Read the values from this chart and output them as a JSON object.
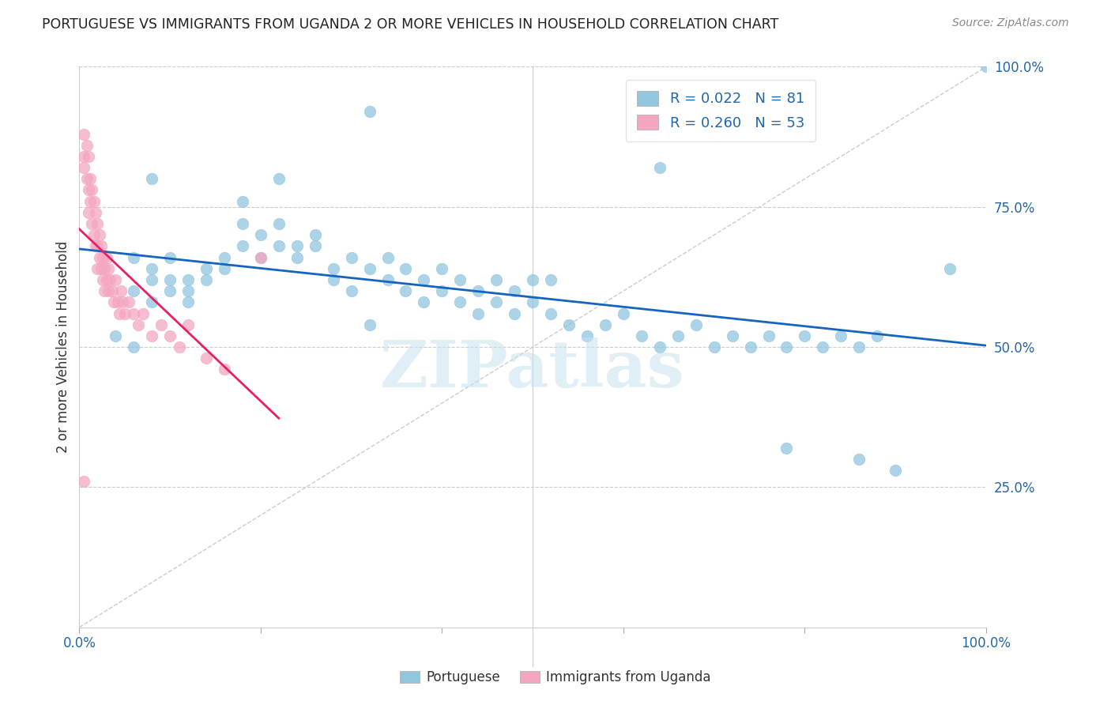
{
  "title": "PORTUGUESE VS IMMIGRANTS FROM UGANDA 2 OR MORE VEHICLES IN HOUSEHOLD CORRELATION CHART",
  "source": "Source: ZipAtlas.com",
  "ylabel": "2 or more Vehicles in Household",
  "xlim": [
    0,
    1.0
  ],
  "ylim": [
    0,
    1.0
  ],
  "blue_color": "#92c5de",
  "pink_color": "#f4a6c0",
  "regression_blue": "#1565c0",
  "regression_pink": "#e91e63",
  "R_blue": 0.022,
  "N_blue": 81,
  "R_pink": 0.26,
  "N_pink": 53,
  "legend_label_blue": "Portuguese",
  "legend_label_pink": "Immigrants from Uganda",
  "watermark": "ZIPatlas",
  "blue_scatter_x": [
    0.32,
    0.08,
    0.22,
    0.18,
    0.22,
    0.18,
    0.2,
    0.22,
    0.1,
    0.06,
    0.08,
    0.08,
    0.1,
    0.06,
    0.1,
    0.12,
    0.08,
    0.12,
    0.14,
    0.12,
    0.14,
    0.16,
    0.18,
    0.16,
    0.2,
    0.24,
    0.26,
    0.24,
    0.26,
    0.28,
    0.3,
    0.28,
    0.32,
    0.34,
    0.34,
    0.36,
    0.36,
    0.38,
    0.38,
    0.4,
    0.4,
    0.42,
    0.42,
    0.44,
    0.44,
    0.46,
    0.46,
    0.48,
    0.48,
    0.5,
    0.5,
    0.52,
    0.54,
    0.56,
    0.58,
    0.6,
    0.62,
    0.64,
    0.66,
    0.68,
    0.7,
    0.72,
    0.74,
    0.76,
    0.78,
    0.8,
    0.82,
    0.84,
    0.86,
    0.88,
    0.32,
    0.04,
    0.06,
    0.52,
    0.3,
    0.64,
    0.78,
    0.86,
    0.9,
    0.96,
    1.0
  ],
  "blue_scatter_y": [
    0.92,
    0.8,
    0.8,
    0.76,
    0.72,
    0.72,
    0.7,
    0.68,
    0.66,
    0.66,
    0.64,
    0.62,
    0.62,
    0.6,
    0.6,
    0.62,
    0.58,
    0.58,
    0.62,
    0.6,
    0.64,
    0.66,
    0.68,
    0.64,
    0.66,
    0.68,
    0.7,
    0.66,
    0.68,
    0.64,
    0.66,
    0.62,
    0.64,
    0.66,
    0.62,
    0.6,
    0.64,
    0.62,
    0.58,
    0.64,
    0.6,
    0.62,
    0.58,
    0.6,
    0.56,
    0.62,
    0.58,
    0.6,
    0.56,
    0.62,
    0.58,
    0.56,
    0.54,
    0.52,
    0.54,
    0.56,
    0.52,
    0.5,
    0.52,
    0.54,
    0.5,
    0.52,
    0.5,
    0.52,
    0.5,
    0.52,
    0.5,
    0.52,
    0.5,
    0.52,
    0.54,
    0.52,
    0.5,
    0.62,
    0.6,
    0.82,
    0.32,
    0.3,
    0.28,
    0.64,
    1.0
  ],
  "pink_scatter_x": [
    0.005,
    0.005,
    0.005,
    0.008,
    0.008,
    0.01,
    0.01,
    0.01,
    0.012,
    0.012,
    0.014,
    0.014,
    0.016,
    0.016,
    0.018,
    0.018,
    0.02,
    0.02,
    0.02,
    0.022,
    0.022,
    0.024,
    0.024,
    0.026,
    0.026,
    0.028,
    0.028,
    0.03,
    0.03,
    0.032,
    0.032,
    0.034,
    0.036,
    0.038,
    0.04,
    0.042,
    0.044,
    0.046,
    0.048,
    0.05,
    0.055,
    0.06,
    0.065,
    0.07,
    0.08,
    0.09,
    0.1,
    0.11,
    0.12,
    0.14,
    0.16,
    0.2,
    0.005
  ],
  "pink_scatter_y": [
    0.88,
    0.84,
    0.82,
    0.86,
    0.8,
    0.84,
    0.78,
    0.74,
    0.8,
    0.76,
    0.78,
    0.72,
    0.76,
    0.7,
    0.74,
    0.68,
    0.72,
    0.68,
    0.64,
    0.7,
    0.66,
    0.68,
    0.64,
    0.66,
    0.62,
    0.64,
    0.6,
    0.66,
    0.62,
    0.64,
    0.6,
    0.62,
    0.6,
    0.58,
    0.62,
    0.58,
    0.56,
    0.6,
    0.58,
    0.56,
    0.58,
    0.56,
    0.54,
    0.56,
    0.52,
    0.54,
    0.52,
    0.5,
    0.54,
    0.48,
    0.46,
    0.66,
    0.26
  ]
}
